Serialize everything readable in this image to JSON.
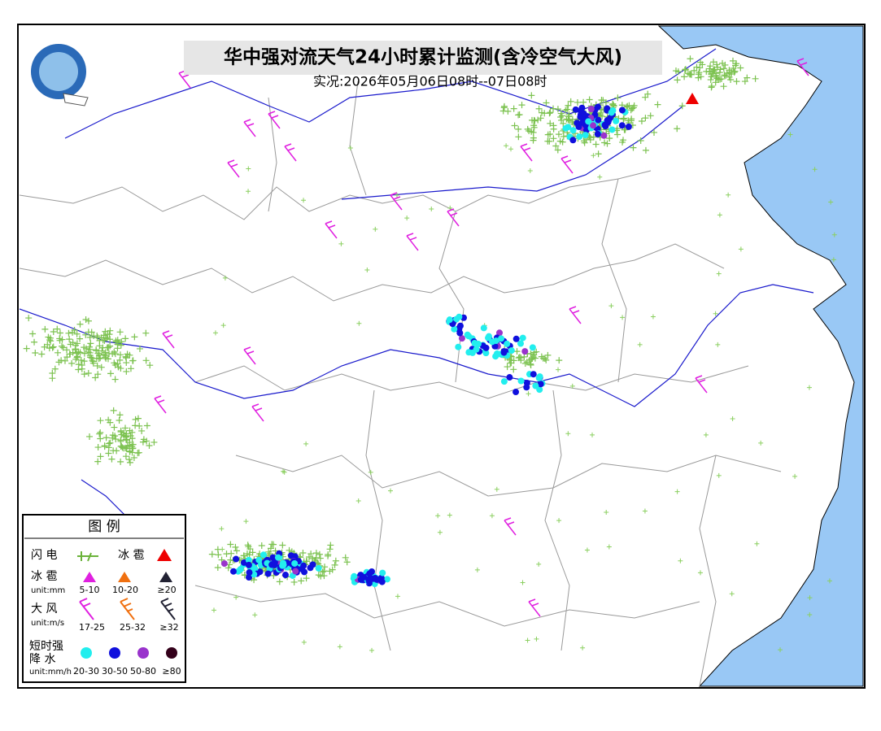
{
  "header": {
    "title": "华中强对流天气24小时累计监测(含冷空气大风)",
    "subtitle": "实况:2026年05月06日08时--07日08时"
  },
  "legend": {
    "title": "图 例",
    "lightning": {
      "label": "闪 电"
    },
    "hail_flag": {
      "label": "冰 雹"
    },
    "hail": {
      "label": "冰 雹",
      "unit": "unit:mm",
      "items": [
        "5-10",
        "10-20",
        "≥20"
      ]
    },
    "wind": {
      "label": "大 风",
      "unit": "unit:m/s",
      "items": [
        "17-25",
        "25-32",
        "≥32"
      ]
    },
    "rain": {
      "label_lines": [
        "短时强",
        "降 水"
      ],
      "unit": "unit:mm/h",
      "items": [
        "20-30",
        "30-50",
        "50-80",
        "≥80"
      ]
    }
  }
}
